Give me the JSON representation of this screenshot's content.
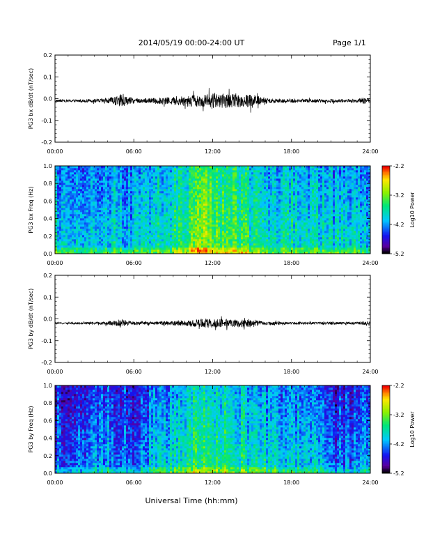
{
  "header": {
    "title": "2014/05/19  00:00-24:00 UT",
    "page": "Page 1/1"
  },
  "footer": {
    "xlabel": "Universal Time (hh:mm)"
  },
  "chart_data": [
    {
      "type": "line",
      "ylabel": "PG3 bx dB/dt (nT/sec)",
      "ylim": [
        -0.2,
        0.2
      ],
      "yticks": [
        "-0.2",
        "-0.1",
        "0.0",
        "0.1",
        "0.2"
      ],
      "xticks": [
        "00:00",
        "06:00",
        "12:00",
        "18:00",
        "24:00"
      ],
      "xlim": [
        0,
        24
      ],
      "series": [
        {
          "baseline": -0.01,
          "envelope_hours": [
            0,
            1,
            2,
            3,
            4,
            4.5,
            5,
            5.5,
            6,
            7,
            8,
            9,
            10,
            10.5,
            11,
            11.5,
            12,
            12.5,
            13,
            13.5,
            14,
            14.5,
            15,
            15.5,
            16,
            17,
            18,
            19,
            20,
            21,
            22,
            23,
            23.5,
            24
          ],
          "envelope_amplitude": [
            0.006,
            0.006,
            0.007,
            0.008,
            0.012,
            0.02,
            0.03,
            0.02,
            0.012,
            0.012,
            0.015,
            0.018,
            0.025,
            0.03,
            0.025,
            0.03,
            0.04,
            0.03,
            0.035,
            0.03,
            0.03,
            0.03,
            0.035,
            0.02,
            0.012,
            0.01,
            0.009,
            0.008,
            0.008,
            0.008,
            0.008,
            0.008,
            0.015,
            0.008
          ]
        }
      ]
    },
    {
      "type": "heatmap",
      "ylabel": "PG3 bx Freq (Hz)",
      "ylim": [
        0.0,
        1.0
      ],
      "yticks": [
        "0.0",
        "0.2",
        "0.4",
        "0.6",
        "0.8",
        "1.0"
      ],
      "xticks": [
        "00:00",
        "06:00",
        "12:00",
        "18:00",
        "24:00"
      ],
      "xlim": [
        0,
        24
      ],
      "colorbar": {
        "label": "Log10 Power",
        "ticks": [
          "-2.2",
          "-3.2",
          "-4.2",
          "-5.2"
        ],
        "range": [
          -5.2,
          -2.2
        ]
      },
      "activity_hours": [
        0,
        1,
        2,
        3,
        4,
        5,
        6,
        7,
        8,
        9,
        10,
        11,
        12,
        13,
        14,
        15,
        16,
        17,
        18,
        19,
        20,
        21,
        22,
        23,
        24
      ],
      "activity_level": [
        0.45,
        0.45,
        0.38,
        0.4,
        0.45,
        0.45,
        0.42,
        0.45,
        0.5,
        0.55,
        0.6,
        0.7,
        0.68,
        0.65,
        0.6,
        0.55,
        0.5,
        0.48,
        0.48,
        0.48,
        0.48,
        0.45,
        0.45,
        0.45,
        0.45
      ]
    },
    {
      "type": "line",
      "ylabel": "PG3 by dB/dt (nT/sec)",
      "ylim": [
        -0.2,
        0.2
      ],
      "yticks": [
        "-0.2",
        "-0.1",
        "0.0",
        "0.1",
        "0.2"
      ],
      "xticks": [
        "00:00",
        "06:00",
        "12:00",
        "18:00",
        "24:00"
      ],
      "xlim": [
        0,
        24
      ],
      "series": [
        {
          "baseline": -0.02,
          "envelope_hours": [
            0,
            1,
            2,
            3,
            4,
            4.5,
            5,
            5.5,
            6,
            7,
            8,
            9,
            10,
            10.5,
            11,
            11.5,
            12,
            12.5,
            13,
            13.5,
            14,
            14.5,
            15,
            15.5,
            16,
            17,
            18,
            19,
            20,
            21,
            22,
            23,
            23.5,
            24
          ],
          "envelope_amplitude": [
            0.004,
            0.004,
            0.005,
            0.006,
            0.008,
            0.012,
            0.02,
            0.012,
            0.008,
            0.008,
            0.008,
            0.01,
            0.014,
            0.016,
            0.02,
            0.022,
            0.02,
            0.02,
            0.02,
            0.018,
            0.018,
            0.018,
            0.02,
            0.012,
            0.008,
            0.007,
            0.006,
            0.006,
            0.006,
            0.006,
            0.006,
            0.006,
            0.008,
            0.006
          ]
        }
      ]
    },
    {
      "type": "heatmap",
      "ylabel": "PG3 by Freq (Hz)",
      "ylim": [
        0.0,
        1.0
      ],
      "yticks": [
        "0.0",
        "0.2",
        "0.4",
        "0.6",
        "0.8",
        "1.0"
      ],
      "xticks": [
        "00:00",
        "06:00",
        "12:00",
        "18:00",
        "24:00"
      ],
      "xlim": [
        0,
        24
      ],
      "colorbar": {
        "label": "Log10 Power",
        "ticks": [
          "-2.2",
          "-3.2",
          "-4.2",
          "-5.2"
        ],
        "range": [
          -5.2,
          -2.2
        ]
      },
      "activity_hours": [
        0,
        1,
        2,
        3,
        4,
        5,
        6,
        7,
        8,
        9,
        10,
        11,
        12,
        13,
        14,
        15,
        16,
        17,
        18,
        19,
        20,
        21,
        22,
        23,
        24
      ],
      "activity_level": [
        0.3,
        0.28,
        0.25,
        0.3,
        0.35,
        0.32,
        0.3,
        0.35,
        0.42,
        0.48,
        0.52,
        0.58,
        0.56,
        0.55,
        0.5,
        0.48,
        0.45,
        0.42,
        0.42,
        0.4,
        0.38,
        0.3,
        0.28,
        0.3,
        0.32
      ]
    }
  ]
}
